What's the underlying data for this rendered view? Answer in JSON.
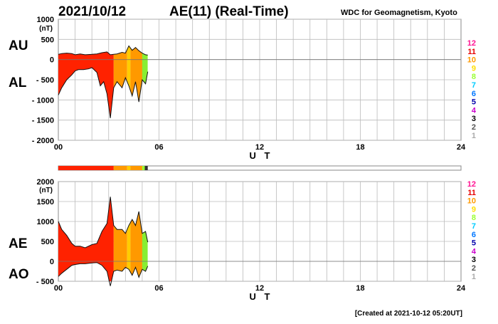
{
  "header": {
    "date": "2021/10/12",
    "title": "AE(11) (Real-Time)",
    "organization": "WDC for Geomagnetism, Kyoto"
  },
  "footer": {
    "created": "[Created at 2021-10-12 05:20UT]"
  },
  "legend": {
    "items": [
      {
        "label": "12",
        "color": "#ff1493"
      },
      {
        "label": "11",
        "color": "#e60000"
      },
      {
        "label": "10",
        "color": "#ff9900"
      },
      {
        "label": "9",
        "color": "#ffdd00"
      },
      {
        "label": "8",
        "color": "#99ff33"
      },
      {
        "label": "7",
        "color": "#00ccff"
      },
      {
        "label": "6",
        "color": "#0077ff"
      },
      {
        "label": "5",
        "color": "#0000aa"
      },
      {
        "label": "4",
        "color": "#cc00cc"
      },
      {
        "label": "3",
        "color": "#000000"
      },
      {
        "label": "2",
        "color": "#555555"
      },
      {
        "label": "1",
        "color": "#aaaaaa"
      }
    ]
  },
  "station_bar": {
    "segments": [
      {
        "start": 0.0,
        "end": 3.3,
        "color": "#ff2200"
      },
      {
        "start": 3.3,
        "end": 4.1,
        "color": "#ff9900"
      },
      {
        "start": 4.1,
        "end": 4.3,
        "color": "#ffcc00"
      },
      {
        "start": 4.3,
        "end": 5.0,
        "color": "#ff9900"
      },
      {
        "start": 5.0,
        "end": 5.15,
        "color": "#99ff33"
      },
      {
        "start": 5.15,
        "end": 5.33,
        "color": "#333333"
      }
    ]
  },
  "chart_data": [
    {
      "type": "area",
      "panel": "top",
      "side_labels": [
        "AU",
        "AL"
      ],
      "unit": "(nT)",
      "xlabel": "U T",
      "xlim": [
        0,
        24
      ],
      "xticks": [
        "00",
        "06",
        "12",
        "18",
        "24"
      ],
      "ylim": [
        -2000,
        1000
      ],
      "yticks": [
        "1000",
        "500",
        "0",
        "- 500",
        "- 1000",
        "- 1500",
        "- 2000"
      ],
      "grid": true,
      "series": [
        {
          "name": "AU",
          "x": [
            0.0,
            0.2,
            0.5,
            0.8,
            1.0,
            1.3,
            1.6,
            2.0,
            2.3,
            2.6,
            2.9,
            3.1,
            3.3,
            3.5,
            3.8,
            4.0,
            4.2,
            4.4,
            4.6,
            4.8,
            5.0,
            5.2,
            5.33
          ],
          "values": [
            130,
            150,
            160,
            150,
            120,
            140,
            120,
            130,
            140,
            170,
            190,
            120,
            130,
            140,
            180,
            160,
            340,
            230,
            300,
            220,
            160,
            120,
            110
          ]
        },
        {
          "name": "AL",
          "x": [
            0.0,
            0.2,
            0.5,
            0.8,
            1.0,
            1.2,
            1.5,
            1.8,
            2.0,
            2.3,
            2.5,
            2.7,
            2.9,
            3.1,
            3.3,
            3.5,
            3.8,
            4.0,
            4.2,
            4.4,
            4.6,
            4.8,
            5.0,
            5.2,
            5.33
          ],
          "values": [
            -880,
            -700,
            -500,
            -380,
            -280,
            -250,
            -250,
            -230,
            -200,
            -320,
            -650,
            -550,
            -850,
            -1450,
            -700,
            -550,
            -700,
            -450,
            -650,
            -900,
            -550,
            -1050,
            -500,
            -600,
            -300
          ]
        }
      ]
    },
    {
      "type": "area",
      "panel": "bottom",
      "side_labels": [
        "AE",
        "AO"
      ],
      "unit": "(nT)",
      "xlabel": "U T",
      "xlim": [
        0,
        24
      ],
      "xticks": [
        "00",
        "06",
        "12",
        "18",
        "24"
      ],
      "ylim": [
        -500,
        2000
      ],
      "yticks": [
        "2000",
        "1500",
        "1000",
        "500",
        "0",
        "- 500"
      ],
      "grid": true,
      "series": [
        {
          "name": "AE",
          "x": [
            0.0,
            0.2,
            0.5,
            0.8,
            1.0,
            1.3,
            1.6,
            2.0,
            2.3,
            2.6,
            2.9,
            3.1,
            3.3,
            3.5,
            3.8,
            4.0,
            4.2,
            4.4,
            4.6,
            4.8,
            5.0,
            5.2,
            5.33
          ],
          "values": [
            1000,
            800,
            650,
            450,
            380,
            380,
            340,
            420,
            450,
            750,
            950,
            1620,
            900,
            800,
            800,
            700,
            900,
            1050,
            900,
            1250,
            700,
            750,
            480
          ]
        },
        {
          "name": "AO",
          "x": [
            0.0,
            0.2,
            0.5,
            0.8,
            1.0,
            1.3,
            1.6,
            2.0,
            2.3,
            2.6,
            2.9,
            3.1,
            3.3,
            3.5,
            3.8,
            4.0,
            4.2,
            4.4,
            4.6,
            4.8,
            5.0,
            5.2,
            5.33
          ],
          "values": [
            -380,
            -300,
            -200,
            -100,
            -80,
            -60,
            -60,
            -40,
            -30,
            -100,
            -250,
            -620,
            -250,
            -220,
            -250,
            -150,
            -200,
            -350,
            -150,
            -400,
            -200,
            -250,
            -120
          ]
        }
      ]
    }
  ]
}
